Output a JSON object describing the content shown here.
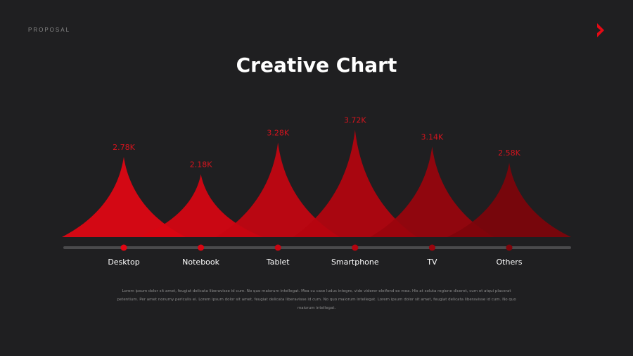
{
  "header": {
    "kicker": "PROPOSAL",
    "brand_icon": "chevron-right-icon",
    "title": "Creative Chart"
  },
  "colors": {
    "background": "#1f1f21",
    "accent": "#e50914",
    "track": "#4a4a4c"
  },
  "chart_data": {
    "type": "area",
    "categories": [
      "Desktop",
      "Notebook",
      "Tablet",
      "Smartphone",
      "TV",
      "Others"
    ],
    "values": [
      2.78,
      2.18,
      3.28,
      3.72,
      3.14,
      2.58
    ],
    "value_labels": [
      "2.78K",
      "2.18K",
      "3.28K",
      "3.72K",
      "3.14K",
      "2.58K"
    ],
    "colors": [
      "#e30613",
      "#d90512",
      "#c70511",
      "#b5040f",
      "#9a040d",
      "#7f040b"
    ],
    "ylim": [
      0,
      4.0
    ],
    "grid": false,
    "legend": "none"
  },
  "footer": {
    "text": "Lorem ipsum dolor sit amet, feugiat delicata liberavisse id cum. No quo maiorum intellegat. Mea cu case ludus integre, vide viderer eleifend ex mea. His at soluta regione diceret, cum et atqui placerat petentium. Per amet nonumy periculis ei. Lorem ipsum dolor sit amet, feugiat delicata liberavisse id cum. No quo maiorum intellegat. Lorem ipsum dolor sit amet, feugiat delicata liberavisse id cum. No quo maiorum intellegat."
  }
}
